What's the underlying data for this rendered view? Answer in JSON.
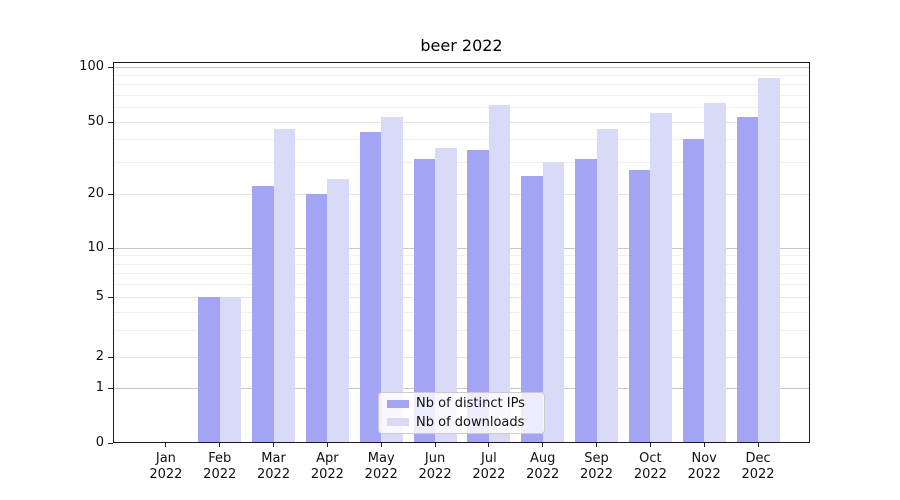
{
  "chart_data": {
    "type": "bar",
    "title": "beer 2022",
    "year": "2022",
    "months": [
      "Jan",
      "Feb",
      "Mar",
      "Apr",
      "May",
      "Jun",
      "Jul",
      "Aug",
      "Sep",
      "Oct",
      "Nov",
      "Dec"
    ],
    "categories": [
      "Jan 2022",
      "Feb 2022",
      "Mar 2022",
      "Apr 2022",
      "May 2022",
      "Jun 2022",
      "Jul 2022",
      "Aug 2022",
      "Sep 2022",
      "Oct 2022",
      "Nov 2022",
      "Dec 2022"
    ],
    "series": [
      {
        "name": "Nb of distinct IPs",
        "color": "#a4a4f4",
        "values": [
          0,
          5,
          22,
          20,
          44,
          31,
          35,
          25,
          31,
          27,
          40,
          53
        ]
      },
      {
        "name": "Nb of downloads",
        "color": "#d9d9f8",
        "values": [
          0,
          5,
          46,
          24,
          53,
          36,
          62,
          30,
          46,
          56,
          63,
          87
        ]
      }
    ],
    "y_ticks": [
      0,
      1,
      2,
      5,
      10,
      20,
      50,
      100
    ],
    "y_minor_ticks": [
      3,
      4,
      6,
      7,
      8,
      9,
      30,
      40,
      60,
      70,
      80,
      90
    ],
    "ylim": [
      0,
      106
    ],
    "yscale": "log-with-zero",
    "xlabel": "",
    "ylabel": "",
    "grid": true,
    "legend_position": "lower center"
  },
  "grid_colors": {
    "power_of_ten": "#c8c8c8",
    "major": "#e3e3e3",
    "minor": "#efefef"
  }
}
